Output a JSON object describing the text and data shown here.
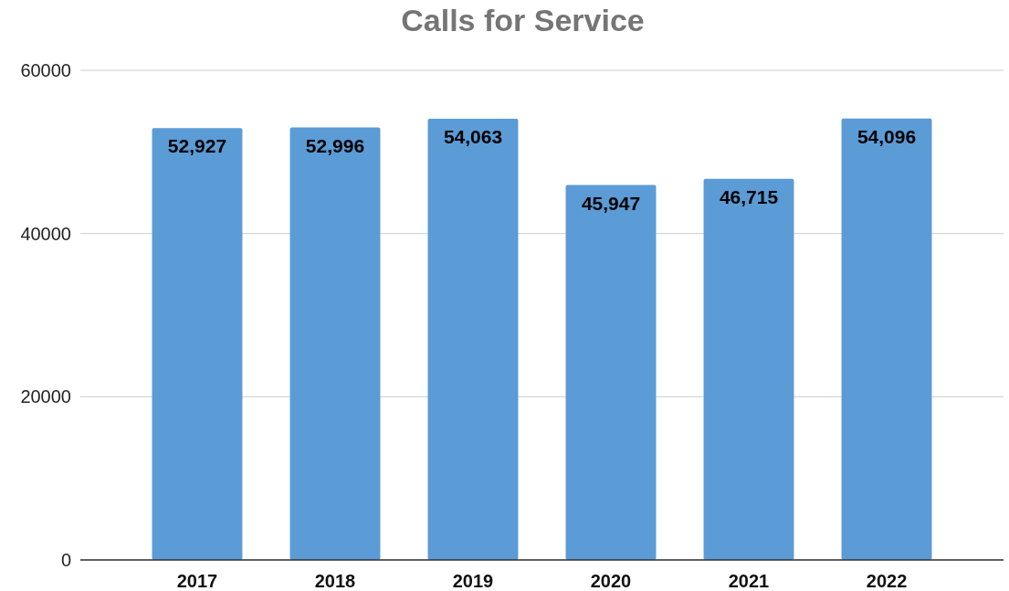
{
  "chart_data": {
    "type": "bar",
    "title": "Calls for Service",
    "categories": [
      "2017",
      "2018",
      "2019",
      "2020",
      "2021",
      "2022"
    ],
    "values": [
      52927,
      52996,
      54063,
      45947,
      46715,
      54096
    ],
    "value_labels": [
      "52,927",
      "52,996",
      "54,063",
      "45,947",
      "46,715",
      "54,096"
    ],
    "color": "#5b9bd6",
    "ylim": [
      0,
      60000
    ],
    "yticks": [
      0,
      20000,
      40000,
      60000
    ],
    "grid": "y"
  }
}
